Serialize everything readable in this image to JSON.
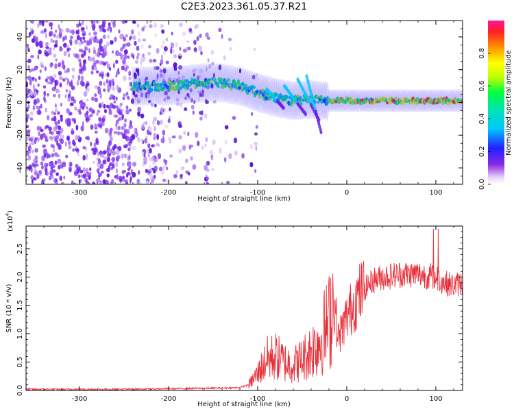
{
  "title": "C2E3.2023.361.05.37.R21",
  "chart_data": [
    {
      "type": "heatmap",
      "xlabel": "Height of straight line (km)",
      "ylabel": "Frequency (Hz)",
      "xlim": [
        -360,
        130
      ],
      "ylim": [
        -50,
        50
      ],
      "x_ticks": [
        -300,
        -200,
        -100,
        0,
        100
      ],
      "x_tick_labels": [
        "-300",
        "-200",
        "-100",
        "0",
        "100"
      ],
      "y_ticks": [
        -40,
        -20,
        0,
        20,
        40
      ],
      "y_tick_labels": [
        "-40",
        "-20",
        "0",
        "20",
        "40"
      ],
      "colorbar": {
        "label": "Normalized spectral amplitude",
        "range": [
          0,
          1
        ],
        "ticks": [
          0.0,
          0.2,
          0.4,
          0.6,
          0.8
        ],
        "tick_labels": [
          "0.0",
          "0.2",
          "0.4",
          "0.6",
          "0.8"
        ]
      },
      "ridge": {
        "x": [
          -240,
          -200,
          -160,
          -140,
          -120,
          -100,
          -80,
          -60,
          -40,
          -30,
          -20,
          0,
          50,
          100,
          130
        ],
        "freq": [
          10,
          10,
          12,
          12,
          10,
          6,
          3,
          1,
          2,
          1,
          1,
          1,
          1,
          1,
          1
        ]
      }
    },
    {
      "type": "line",
      "xlabel": "Height of straight line (km)",
      "ylabel": "SNR (10 * v/v)",
      "scale_note": "(x10",
      "scale_exp": "4",
      "scale_close": ")",
      "xlim": [
        -360,
        130
      ],
      "ylim": [
        0,
        2.9
      ],
      "x_ticks": [
        -300,
        -200,
        -100,
        0,
        100
      ],
      "x_tick_labels": [
        "-300",
        "-200",
        "-100",
        "0",
        "100"
      ],
      "y_ticks": [
        0.0,
        0.5,
        1.0,
        1.5,
        2.0,
        2.5
      ],
      "y_tick_labels": [
        "0.0",
        "0.5",
        "1.0",
        "1.5",
        "2.0",
        "2.5"
      ],
      "series": [
        {
          "color": "#e8303a",
          "x": [
            -360,
            -300,
            -250,
            -200,
            -150,
            -120,
            -110,
            -100,
            -90,
            -80,
            -70,
            -60,
            -50,
            -40,
            -30,
            -20,
            -15,
            -12,
            -10,
            -5,
            0,
            10,
            20,
            30,
            40,
            60,
            80,
            100,
            110,
            120,
            130
          ],
          "y": [
            0.02,
            0.02,
            0.02,
            0.03,
            0.04,
            0.05,
            0.1,
            0.3,
            0.55,
            0.6,
            0.5,
            0.45,
            0.55,
            0.7,
            0.9,
            1.2,
            1.6,
            1.3,
            0.9,
            1.1,
            1.3,
            1.6,
            1.8,
            1.95,
            2.0,
            2.05,
            2.05,
            2.0,
            1.9,
            1.85,
            1.9
          ]
        }
      ]
    }
  ]
}
